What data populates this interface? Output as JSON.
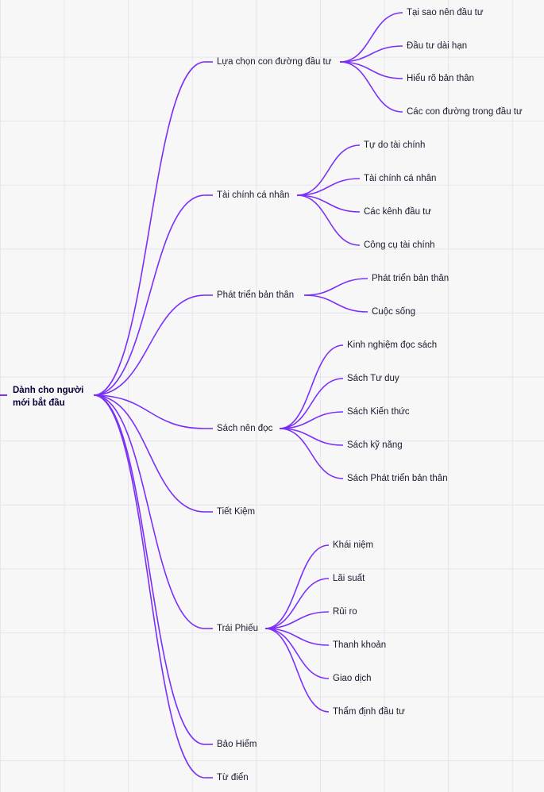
{
  "root": {
    "label": "Dành cho người mới bắt đầu",
    "line1": "Dành cho người",
    "line2": "mới bắt đầu"
  },
  "branches": [
    {
      "label": "Lựa chọn con đường đầu tư",
      "children": [
        "Tại sao nên đầu tư",
        "Đầu tư dài hạn",
        "Hiểu rõ bản thân",
        "Các con đường trong đầu tư"
      ]
    },
    {
      "label": "Tài chính cá nhân",
      "children": [
        "Tự do tài chính",
        "Tài chính cá nhân",
        "Các kênh đầu tư",
        "Công cụ tài chính"
      ]
    },
    {
      "label": "Phát triển bản thân",
      "children": [
        "Phát triển bản thân",
        "Cuộc sống"
      ]
    },
    {
      "label": "Sách nên đọc",
      "children": [
        "Kinh nghiệm đọc sách",
        "Sách Tư duy",
        "Sách Kiến thức",
        "Sách kỹ năng",
        "Sách Phát triển bản thân"
      ]
    },
    {
      "label": "Tiết Kiệm",
      "children": []
    },
    {
      "label": "Trái Phiếu",
      "children": [
        "Khái niệm",
        "Lãi suất",
        "Rủi ro",
        "Thanh khoản",
        "Giao dịch",
        "Thẩm định đầu tư"
      ]
    },
    {
      "label": "Bảo Hiểm",
      "children": []
    },
    {
      "label": "Từ điển",
      "children": []
    }
  ],
  "colors": {
    "connector": "#7b2ff7",
    "text": "#1a1a2e",
    "grid": "#e6e6e9",
    "background": "#f7f7f8"
  }
}
